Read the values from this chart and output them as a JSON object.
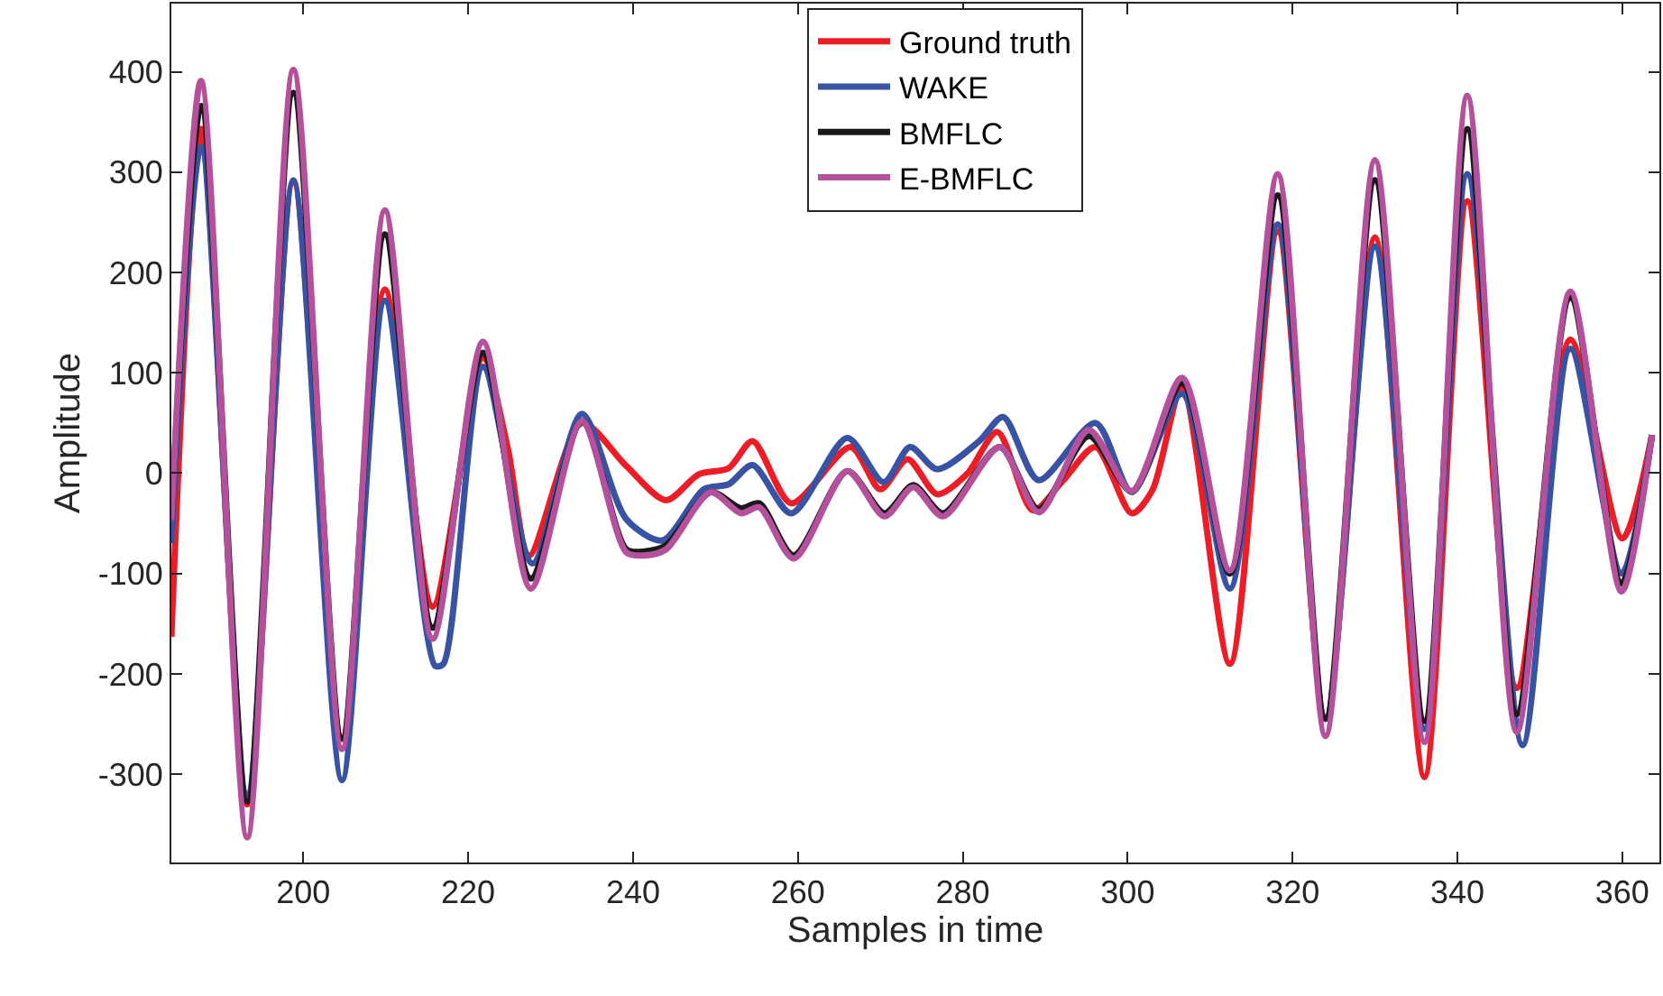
{
  "chart_data": {
    "type": "line",
    "xlabel": "Samples in time",
    "ylabel": "Amplitude",
    "xlim": [
      184,
      364.5
    ],
    "ylim": [
      -388,
      468
    ],
    "xticks": [
      200,
      220,
      240,
      260,
      280,
      300,
      320,
      340,
      360
    ],
    "yticks": [
      -300,
      -200,
      -100,
      0,
      100,
      200,
      300,
      400
    ],
    "legend": "top",
    "grid": false,
    "line_style": "solid",
    "series": [
      {
        "name": "Ground truth",
        "color": "#ee1c25",
        "x": [
          184,
          187.6,
          193.2,
          198.8,
          204.7,
          209.9,
          215.7,
          221.8,
          224.8,
          227.4,
          233.8,
          239.2,
          244,
          248,
          251.6,
          254.5,
          259.2,
          266.4,
          270,
          273.3,
          276.9,
          280.5,
          284.2,
          288.5,
          292.2,
          296.1,
          300.5,
          303,
          306.6,
          312.4,
          318.2,
          324,
          330,
          336,
          341.2,
          347.2,
          353.7,
          360,
          363.6
        ],
        "values": [
          -163,
          343,
          -330,
          290,
          -265,
          183,
          -133,
          115,
          25,
          -82,
          50,
          7,
          -27,
          -1,
          5,
          32,
          -30,
          26,
          -16,
          14,
          -21,
          -1,
          41,
          -37,
          -7,
          26,
          -40,
          -17,
          85,
          -190,
          241,
          -245,
          235,
          -303,
          271,
          -214,
          133,
          -65,
          38
        ]
      },
      {
        "name": "WAKE",
        "color": "#3953a4",
        "x": [
          184,
          187.6,
          193.2,
          198.8,
          204.7,
          209.9,
          216,
          217,
          221.8,
          227.8,
          233.8,
          239.2,
          243.6,
          248.6,
          251.6,
          254.5,
          259.2,
          266,
          270.4,
          273.6,
          276.9,
          282,
          284.9,
          289.2,
          296.1,
          300.5,
          306.6,
          312.4,
          318.2,
          324,
          330,
          336,
          341.2,
          347.9,
          353.7,
          359.9,
          363.6
        ],
        "values": [
          -70,
          325,
          -320,
          292,
          -306,
          172,
          -192,
          -190,
          106,
          -90,
          59,
          -46,
          -67,
          -16,
          -11,
          8,
          -40,
          35,
          -9,
          26,
          4,
          32,
          56,
          -7,
          50,
          -19,
          79,
          -115,
          248,
          -245,
          226,
          -255,
          298,
          -271,
          124,
          -100,
          38
        ]
      },
      {
        "name": "BMFLC",
        "color": "#1a1a1a",
        "x": [
          184,
          187.6,
          193.2,
          198.8,
          204.7,
          209.9,
          215.7,
          221.8,
          227.6,
          233.8,
          239.2,
          241.4,
          244,
          249.4,
          253.1,
          255.3,
          259.5,
          266,
          270.5,
          274,
          277.6,
          284.5,
          289.2,
          295.3,
          300.5,
          306.6,
          312.4,
          318.2,
          324,
          330,
          336,
          341.2,
          347.2,
          353.7,
          359.9,
          363.6
        ],
        "values": [
          -47,
          366,
          -327,
          379,
          -264,
          238,
          -154,
          120,
          -105,
          52,
          -76,
          -78,
          -72,
          -19,
          -35,
          -30,
          -82,
          2,
          -40,
          -12,
          -40,
          26,
          -36,
          37,
          -18,
          90,
          -100,
          277,
          -244,
          292,
          -247,
          343,
          -240,
          175,
          -110,
          38
        ]
      },
      {
        "name": "E-BMFLC",
        "color": "#b5519c",
        "x": [
          184,
          187.6,
          193.2,
          198.8,
          204.7,
          209.9,
          215.7,
          221.8,
          227.6,
          233.8,
          239.2,
          241.4,
          244,
          249.4,
          253.1,
          255.3,
          259.5,
          266,
          270.5,
          274,
          277.6,
          284.5,
          289.2,
          295.3,
          300.5,
          306.6,
          312.4,
          318.2,
          324,
          330,
          336,
          341.2,
          347.2,
          353.7,
          359.9,
          363.6
        ],
        "values": [
          -47,
          391,
          -363,
          402,
          -275,
          262,
          -165,
          131,
          -115,
          52,
          -79,
          -82,
          -76,
          -19,
          -40,
          -34,
          -85,
          2,
          -43,
          -14,
          -43,
          26,
          -39,
          43,
          -18,
          95,
          -97,
          298,
          -262,
          312,
          -268,
          376,
          -258,
          181,
          -118,
          38
        ]
      }
    ]
  }
}
